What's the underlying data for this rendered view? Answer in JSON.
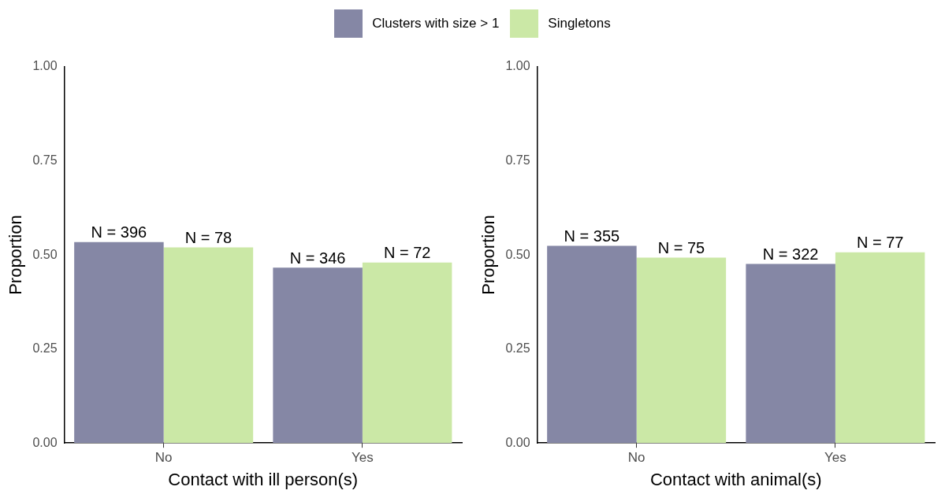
{
  "chart_data": [
    {
      "type": "bar",
      "xlabel": "Contact with ill person(s)",
      "ylabel": "Proportion",
      "categories": [
        "No",
        "Yes"
      ],
      "series": [
        {
          "name": "Clusters with size > 1",
          "color": "#8587a5",
          "values": [
            0.534,
            0.466
          ]
        },
        {
          "name": "Singletons",
          "color": "#cbe8a6",
          "values": [
            0.52,
            0.48
          ]
        }
      ],
      "annotations": [
        {
          "text": "N = 396",
          "x": "No",
          "y": 0.534
        },
        {
          "text": "N = 346",
          "x": "Yes",
          "y": 0.466
        },
        {
          "text": "N = 78",
          "x": "No",
          "y": 0.52
        },
        {
          "text": "N = 72",
          "x": "Yes",
          "y": 0.48
        }
      ],
      "ylim": [
        0,
        1
      ],
      "yticks": [
        {
          "value": 0,
          "label": "0.00"
        },
        {
          "value": 0.25,
          "label": "0.25"
        },
        {
          "value": 0.5,
          "label": "0.50"
        },
        {
          "value": 0.75,
          "label": "0.75"
        },
        {
          "value": 1,
          "label": "1.00"
        }
      ],
      "grid": false,
      "legend": "top"
    },
    {
      "type": "bar",
      "xlabel": "Contact with animal(s)",
      "ylabel": "Proportion",
      "categories": [
        "No",
        "Yes"
      ],
      "series": [
        {
          "name": "Clusters with size > 1",
          "color": "#8587a5",
          "values": [
            0.524,
            0.476
          ]
        },
        {
          "name": "Singletons",
          "color": "#cbe8a6",
          "values": [
            0.493,
            0.507
          ]
        }
      ],
      "annotations": [
        {
          "text": "N = 355",
          "x": "No",
          "y": 0.524
        },
        {
          "text": "N = 322",
          "x": "Yes",
          "y": 0.476
        },
        {
          "text": "N = 75",
          "x": "No",
          "y": 0.493
        },
        {
          "text": "N = 77",
          "x": "Yes",
          "y": 0.507
        }
      ],
      "ylim": [
        0,
        1
      ],
      "yticks": [
        {
          "value": 0,
          "label": "0.00"
        },
        {
          "value": 0.25,
          "label": "0.25"
        },
        {
          "value": 0.5,
          "label": "0.50"
        },
        {
          "value": 0.75,
          "label": "0.75"
        },
        {
          "value": 1,
          "label": "1.00"
        }
      ],
      "grid": false,
      "legend": "top"
    }
  ]
}
